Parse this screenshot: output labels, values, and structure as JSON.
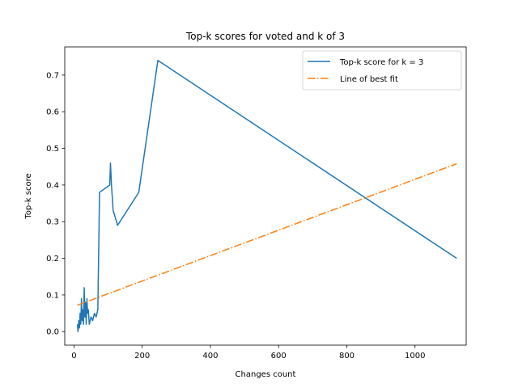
{
  "chart_data": {
    "type": "line",
    "title": "Top-k scores for voted and k of 3",
    "xlabel": "Changes count",
    "ylabel": "Top-k score",
    "xlim": [
      -27,
      1150
    ],
    "ylim": [
      -0.037,
      0.777
    ],
    "xticks": [
      0,
      200,
      400,
      600,
      800,
      1000
    ],
    "yticks": [
      0.0,
      0.1,
      0.2,
      0.3,
      0.4,
      0.5,
      0.6,
      0.7
    ],
    "ytick_labels": [
      "0.0",
      "0.1",
      "0.2",
      "0.3",
      "0.4",
      "0.5",
      "0.6",
      "0.7"
    ],
    "grid": false,
    "legend_position": "top-right",
    "series": [
      {
        "name": "Top-k score for k = 3",
        "color": "#1f77b4",
        "style": "solid",
        "x": [
          10,
          12,
          14,
          16,
          18,
          20,
          22,
          24,
          26,
          28,
          30,
          32,
          34,
          36,
          38,
          40,
          42,
          45,
          50,
          55,
          60,
          65,
          70,
          75,
          105,
          107,
          110,
          115,
          128,
          190,
          246,
          1122
        ],
        "y": [
          0.02,
          0.0,
          0.03,
          0.01,
          0.05,
          0.02,
          0.09,
          0.03,
          0.06,
          0.02,
          0.12,
          0.04,
          0.08,
          0.02,
          0.09,
          0.05,
          0.06,
          0.02,
          0.04,
          0.03,
          0.05,
          0.04,
          0.06,
          0.38,
          0.4,
          0.46,
          0.4,
          0.33,
          0.29,
          0.38,
          0.74,
          0.2
        ]
      },
      {
        "name": "Line of best fit",
        "color": "#ff7f0e",
        "style": "dashdot",
        "x": [
          10,
          1122
        ],
        "y": [
          0.072,
          0.458
        ]
      }
    ]
  }
}
